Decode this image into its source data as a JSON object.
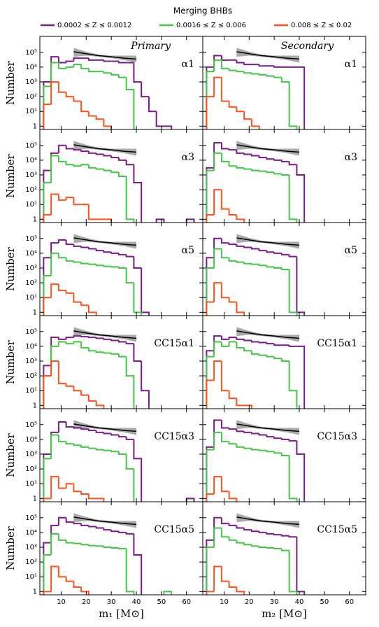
{
  "title": "Merging BHBs",
  "legend": [
    {
      "name": "0.0002 ≤ Z ≤ 0.0012",
      "color": "#7a1a8c"
    },
    {
      "name": "0.0016 ≤ Z ≤ 0.006",
      "color": "#44c744"
    },
    {
      "name": "0.008 ≤ Z ≤ 0.02",
      "color": "#ff521b"
    }
  ],
  "axes": {
    "log_y": true,
    "xlim": [
      1.5,
      66.5
    ],
    "ylim": [
      0.6,
      1200000
    ],
    "xticks": [
      10,
      20,
      30,
      40,
      50,
      60
    ],
    "yticks": [
      1,
      {
        "value": 10,
        "label": "10¹"
      },
      {
        "value": 100,
        "label": "10²"
      },
      {
        "value": 1000,
        "label": "10³"
      },
      {
        "value": 10000,
        "label": "10⁴"
      },
      {
        "value": 100000,
        "label": "10⁵"
      }
    ],
    "bins": [
      3,
      6,
      9,
      12,
      15,
      18,
      21,
      24,
      27,
      30,
      33,
      36,
      39,
      42,
      45,
      48,
      51,
      54,
      57,
      60,
      63,
      66
    ]
  },
  "fit": {
    "color": "#000000",
    "band_color": "#aaaaaa",
    "x": [
      15,
      20,
      25,
      30,
      35,
      40
    ],
    "y": [
      110000,
      80000,
      60000,
      50000,
      40000,
      35000
    ],
    "band_low": [
      50000,
      60000,
      50000,
      40000,
      30000,
      20000
    ],
    "band_high": [
      200000,
      110000,
      70000,
      60000,
      60000,
      60000
    ]
  },
  "chart_data": [
    {
      "type": "histogram",
      "label": "α1",
      "annotation": "Primary",
      "ylabel": "Number",
      "series": [
        {
          "values": [
            1000,
            50000,
            20000,
            25000,
            40000,
            40000,
            30000,
            30000,
            25000,
            25000,
            20000,
            20000,
            1000,
            100,
            10,
            1,
            1,
            null,
            null,
            null,
            null
          ]
        },
        {
          "values": [
            500,
            20000,
            8000,
            10000,
            15000,
            8000,
            5000,
            5000,
            4000,
            3000,
            2000,
            300,
            null,
            null,
            null,
            null,
            null,
            null,
            null,
            null,
            null
          ]
        },
        {
          "values": [
            30,
            1000,
            200,
            100,
            50,
            10,
            5,
            3,
            1,
            null,
            null,
            null,
            null,
            null,
            null,
            null,
            null,
            null,
            null,
            null,
            null
          ]
        }
      ]
    },
    {
      "type": "histogram",
      "label": "α1",
      "annotation": "Secondary",
      "series": [
        {
          "values": [
            10000,
            60000,
            30000,
            30000,
            20000,
            15000,
            15000,
            12000,
            12000,
            10000,
            10000,
            10000,
            10000,
            null,
            null,
            null,
            null,
            null,
            null,
            null,
            null
          ]
        },
        {
          "values": [
            5000,
            30000,
            8000,
            6000,
            5000,
            4000,
            3500,
            3000,
            2500,
            2000,
            1000,
            1,
            null,
            null,
            null,
            null,
            null,
            null,
            null,
            null,
            null
          ]
        },
        {
          "values": [
            100,
            2000,
            50,
            20,
            10,
            3,
            1,
            null,
            null,
            null,
            null,
            null,
            null,
            null,
            null,
            null,
            null,
            null,
            null,
            null,
            null
          ]
        }
      ]
    },
    {
      "type": "histogram",
      "label": "α3",
      "ylabel": "Number",
      "series": [
        {
          "values": [
            2000,
            30000,
            100000,
            60000,
            50000,
            40000,
            30000,
            25000,
            20000,
            15000,
            10000,
            5000,
            300,
            null,
            null,
            1,
            null,
            null,
            null,
            1,
            null
          ]
        },
        {
          "values": [
            300,
            20000,
            8000,
            5000,
            4000,
            5000,
            3000,
            2500,
            2000,
            1500,
            800,
            1,
            null,
            null,
            null,
            null,
            null,
            null,
            null,
            null,
            null
          ]
        },
        {
          "values": [
            2,
            50,
            20,
            30,
            10,
            10,
            1,
            1,
            1,
            null,
            null,
            null,
            null,
            null,
            null,
            null,
            null,
            null,
            null,
            null,
            null
          ]
        }
      ]
    },
    {
      "type": "histogram",
      "label": "α3",
      "series": [
        {
          "values": [
            3000,
            150000,
            60000,
            50000,
            30000,
            25000,
            20000,
            15000,
            12000,
            10000,
            8000,
            5000,
            1000,
            null,
            null,
            null,
            null,
            null,
            null,
            null,
            null
          ]
        },
        {
          "values": [
            2000,
            30000,
            8000,
            4000,
            3000,
            2500,
            2000,
            1800,
            1500,
            1200,
            1000,
            1,
            null,
            null,
            null,
            null,
            null,
            null,
            null,
            null,
            null
          ]
        },
        {
          "values": [
            2,
            100,
            5,
            2,
            1,
            null,
            null,
            null,
            null,
            null,
            null,
            null,
            null,
            null,
            null,
            null,
            null,
            null,
            null,
            null,
            null
          ]
        }
      ]
    },
    {
      "type": "histogram",
      "label": "α5",
      "ylabel": "Number",
      "series": [
        {
          "values": [
            5000,
            50000,
            80000,
            40000,
            30000,
            25000,
            20000,
            15000,
            12000,
            10000,
            8000,
            6000,
            1000,
            1,
            null,
            null,
            null,
            null,
            null,
            null,
            null
          ]
        },
        {
          "values": [
            300,
            10000,
            5000,
            3000,
            2500,
            2000,
            1800,
            1500,
            1300,
            1200,
            1000,
            100,
            1,
            null,
            null,
            null,
            null,
            null,
            null,
            null,
            null
          ]
        },
        {
          "values": [
            10,
            80,
            30,
            20,
            5,
            3,
            1,
            null,
            null,
            null,
            null,
            null,
            null,
            null,
            null,
            null,
            null,
            null,
            null,
            null,
            null
          ]
        }
      ]
    },
    {
      "type": "histogram",
      "label": "α5",
      "series": [
        {
          "values": [
            5000,
            100000,
            50000,
            40000,
            30000,
            25000,
            20000,
            15000,
            12000,
            10000,
            8000,
            6000,
            1,
            null,
            null,
            null,
            null,
            null,
            null,
            null,
            null
          ]
        },
        {
          "values": [
            1000,
            20000,
            5000,
            3000,
            2500,
            2000,
            1800,
            1500,
            1200,
            1000,
            800,
            1,
            null,
            null,
            null,
            null,
            null,
            null,
            null,
            null,
            null
          ]
        },
        {
          "values": [
            5,
            100,
            10,
            5,
            1,
            null,
            null,
            null,
            null,
            null,
            null,
            null,
            null,
            null,
            null,
            null,
            null,
            null,
            null,
            null,
            null
          ]
        }
      ]
    },
    {
      "type": "histogram",
      "label": "CC15α1",
      "ylabel": "Number",
      "series": [
        {
          "values": [
            500,
            40000,
            30000,
            40000,
            50000,
            45000,
            40000,
            35000,
            30000,
            25000,
            20000,
            15000,
            1000,
            10,
            null,
            null,
            null,
            null,
            null,
            null,
            null
          ]
        },
        {
          "values": [
            100,
            10000,
            20000,
            15000,
            20000,
            8000,
            5000,
            4000,
            3500,
            3000,
            2000,
            100,
            null,
            null,
            null,
            null,
            null,
            null,
            null,
            null,
            null
          ]
        },
        {
          "values": [
            100,
            1000,
            30,
            20,
            10,
            5,
            2,
            1,
            null,
            null,
            null,
            null,
            null,
            null,
            null,
            null,
            null,
            null,
            null,
            null,
            null
          ]
        }
      ]
    },
    {
      "type": "histogram",
      "label": "CC15α1",
      "series": [
        {
          "values": [
            5000,
            50000,
            30000,
            40000,
            30000,
            25000,
            20000,
            18000,
            15000,
            12000,
            12000,
            10000,
            10000,
            null,
            null,
            null,
            null,
            null,
            null,
            null,
            null
          ]
        },
        {
          "values": [
            2000,
            20000,
            10000,
            20000,
            8000,
            5000,
            3000,
            2500,
            2000,
            1500,
            1000,
            10,
            null,
            null,
            null,
            null,
            null,
            null,
            null,
            null,
            null
          ]
        },
        {
          "values": [
            50,
            1000,
            10,
            3,
            1,
            1,
            null,
            null,
            null,
            null,
            null,
            null,
            null,
            null,
            null,
            null,
            null,
            null,
            null,
            null,
            null
          ]
        }
      ]
    },
    {
      "type": "histogram",
      "label": "CC15α3",
      "ylabel": "Number",
      "series": [
        {
          "values": [
            1000,
            30000,
            150000,
            70000,
            60000,
            50000,
            40000,
            30000,
            25000,
            20000,
            15000,
            10000,
            500,
            null,
            null,
            null,
            null,
            null,
            null,
            1,
            null
          ]
        },
        {
          "values": [
            500,
            20000,
            7000,
            5000,
            4000,
            3000,
            2500,
            2000,
            1800,
            1500,
            1000,
            100,
            null,
            null,
            null,
            null,
            null,
            null,
            null,
            null,
            null
          ]
        },
        {
          "values": [
            1,
            30,
            5,
            10,
            3,
            2,
            1,
            1,
            null,
            null,
            null,
            null,
            null,
            null,
            null,
            null,
            null,
            null,
            null,
            null,
            null
          ]
        }
      ]
    },
    {
      "type": "histogram",
      "label": "CC15α3",
      "series": [
        {
          "values": [
            3000,
            200000,
            60000,
            50000,
            35000,
            30000,
            25000,
            20000,
            15000,
            12000,
            10000,
            8000,
            1000,
            null,
            null,
            null,
            null,
            null,
            null,
            null,
            null
          ]
        },
        {
          "values": [
            2000,
            30000,
            7000,
            5000,
            3000,
            2500,
            2000,
            1800,
            1500,
            1200,
            800,
            1,
            null,
            null,
            null,
            null,
            null,
            null,
            null,
            null,
            null
          ]
        },
        {
          "values": [
            2,
            30,
            3,
            1,
            null,
            null,
            null,
            null,
            null,
            null,
            null,
            null,
            null,
            null,
            null,
            null,
            null,
            null,
            null,
            null,
            null
          ]
        }
      ]
    },
    {
      "type": "histogram",
      "label": "CC15α5",
      "ylabel": "Number",
      "xlabel": "m₁ [M⊙]",
      "series": [
        {
          "values": [
            2000,
            30000,
            100000,
            50000,
            40000,
            30000,
            25000,
            20000,
            15000,
            12000,
            10000,
            8000,
            300,
            null,
            null,
            null,
            null,
            null,
            null,
            null,
            null
          ]
        },
        {
          "values": [
            300,
            8000,
            3000,
            2000,
            1800,
            1500,
            1300,
            1200,
            1000,
            900,
            800,
            1,
            null,
            null,
            null,
            null,
            1,
            null,
            null,
            null,
            null
          ]
        },
        {
          "values": [
            1,
            50,
            10,
            5,
            2,
            1,
            null,
            null,
            null,
            null,
            null,
            null,
            null,
            null,
            null,
            null,
            null,
            null,
            null,
            null,
            null
          ]
        }
      ]
    },
    {
      "type": "histogram",
      "label": "CC15α5",
      "xlabel": "m₂ [M⊙]",
      "series": [
        {
          "values": [
            3000,
            100000,
            40000,
            30000,
            20000,
            15000,
            12000,
            10000,
            8000,
            7000,
            6000,
            5000,
            1,
            null,
            null,
            null,
            null,
            null,
            null,
            null,
            null
          ]
        },
        {
          "values": [
            1000,
            20000,
            5000,
            3000,
            2000,
            1500,
            1200,
            1000,
            900,
            800,
            600,
            1,
            null,
            null,
            null,
            null,
            null,
            null,
            null,
            null,
            null
          ]
        },
        {
          "values": [
            1,
            50,
            5,
            2,
            1,
            null,
            null,
            null,
            null,
            null,
            null,
            null,
            null,
            null,
            null,
            null,
            null,
            null,
            null,
            null,
            null
          ]
        }
      ]
    }
  ]
}
